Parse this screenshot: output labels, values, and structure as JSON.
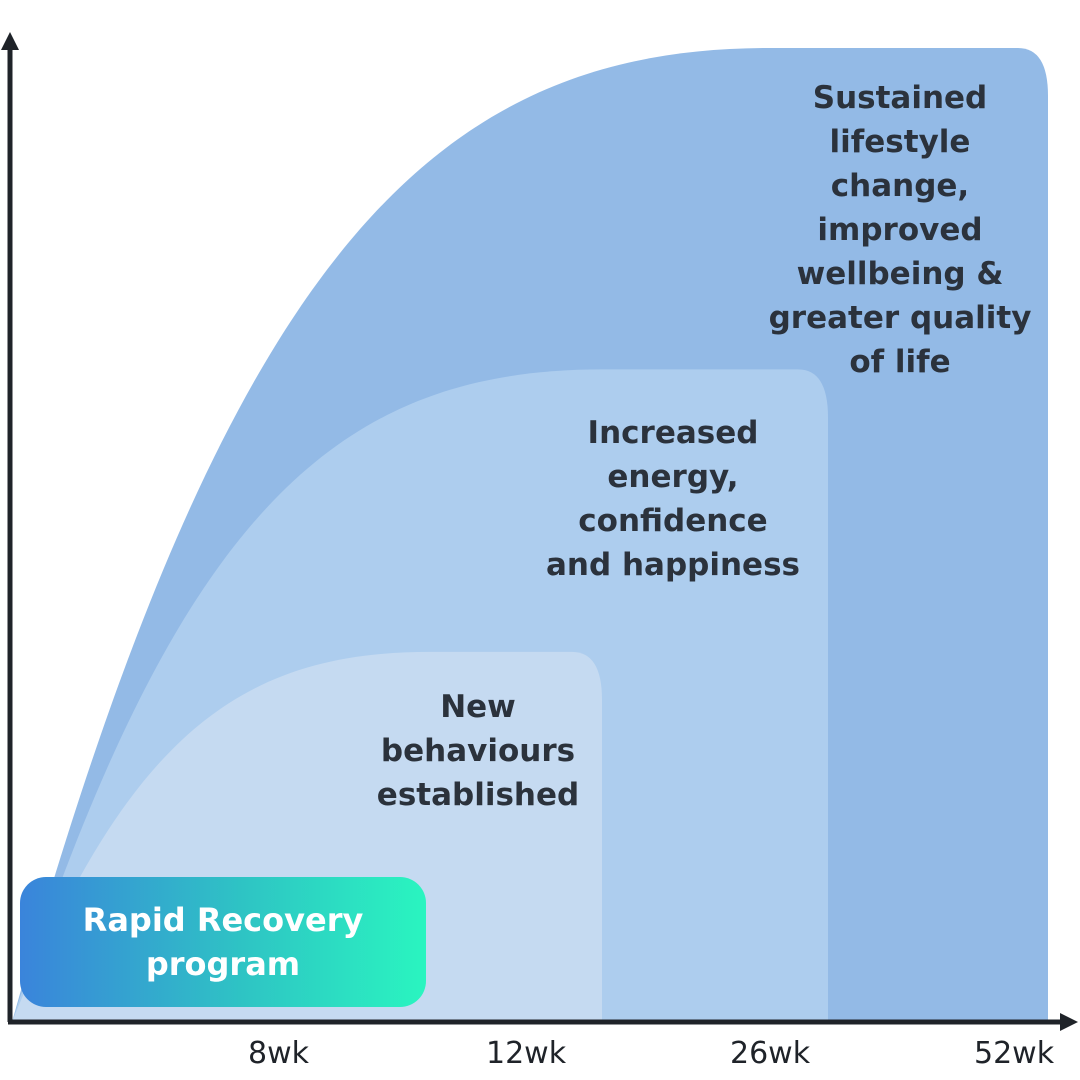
{
  "chart_data": {
    "type": "area",
    "title": "",
    "xlabel": "",
    "ylabel": "",
    "x_ticks": [
      "8wk",
      "12wk",
      "26wk",
      "52wk"
    ],
    "series": [
      {
        "name": "Sustained\nlifestyle\nchange,\nimproved\nwellbeing &\ngreater quality\nof life",
        "end_tick": "52wk",
        "relative_peak": 1.0,
        "color": "#93bae6"
      },
      {
        "name": "Increased\nenergy,\nconfidence\nand happiness",
        "end_tick": "26wk",
        "relative_peak": 0.67,
        "color": "#adcdee"
      },
      {
        "name": "New\nbehaviours\nestablished",
        "end_tick": "12wk",
        "relative_peak": 0.38,
        "color": "#c5daf1"
      }
    ],
    "highlight": {
      "label": "Rapid Recovery\nprogram",
      "start_color": "#3a84db",
      "end_color": "#2af5c0"
    },
    "axis_color": "#1f2329"
  }
}
